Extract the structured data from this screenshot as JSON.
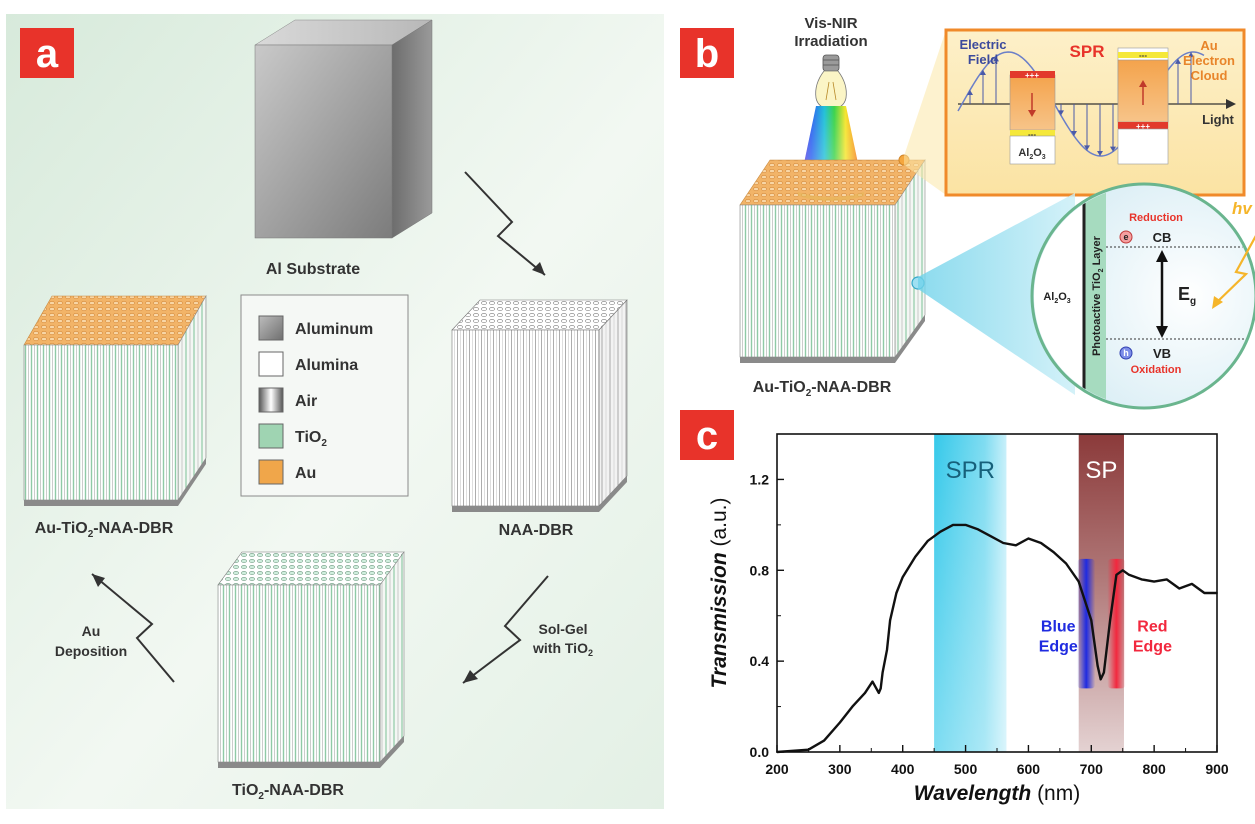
{
  "panel_a": {
    "badge": "a",
    "labels": {
      "al_substrate": "Al Substrate",
      "naa_dbr": "NAA-DBR",
      "tio2_naa_dbr": {
        "pre": "TiO",
        "sub": "2",
        "post": "-NAA-DBR"
      },
      "au_tio2_naa_dbr": {
        "pre": "Au-TiO",
        "sub": "2",
        "post": "-NAA-DBR"
      }
    },
    "steps": {
      "solgel": {
        "line1": "Sol-Gel",
        "line2_pre": "with TiO",
        "line2_sub": "2"
      },
      "au_dep": {
        "line1": "Au",
        "line2": "Deposition"
      }
    },
    "legend": [
      {
        "label": "Aluminum",
        "sub": "",
        "swatch": "aluminum"
      },
      {
        "label": "Alumina",
        "sub": "",
        "swatch": "alumina"
      },
      {
        "label": "Air",
        "sub": "",
        "swatch": "air"
      },
      {
        "label": "TiO",
        "sub": "2",
        "swatch": "tio2"
      },
      {
        "label": "Au",
        "sub": "",
        "swatch": "au"
      }
    ],
    "colors": {
      "background": "#e2efe4",
      "badge": "#e8332a",
      "tio2": "#9fd4b2",
      "au": "#f0a64a",
      "aluminum": "#8a8a8a"
    }
  },
  "panel_b": {
    "badge": "b",
    "lamp": {
      "line1": "Vis-NIR",
      "line2": "Irradiation"
    },
    "sample": {
      "pre": "Au-TiO",
      "sub": "2",
      "post": "-NAA-DBR"
    },
    "spr": {
      "title": "SPR",
      "electric_field": {
        "line1": "Electric",
        "line2": "Field"
      },
      "cloud": {
        "line1": "Au",
        "line2": "Electron",
        "line3": "Cloud"
      },
      "light": "Light",
      "plus": "+++",
      "minus": "---",
      "al2o3": {
        "pre": "Al",
        "s1": "2",
        "mid": "O",
        "s2": "3"
      }
    },
    "band": {
      "reduction": "Reduction",
      "cb": "CB",
      "vb": "VB",
      "oxidation": "Oxidation",
      "eg": {
        "main": "E",
        "sub": "g"
      },
      "electron": "e",
      "hole": "h",
      "hv": "hv",
      "layer": {
        "pre": "Photoactive TiO",
        "sub": "2",
        "post": " Layer"
      },
      "al2o3": {
        "pre": "Al",
        "s1": "2",
        "mid": "O",
        "s2": "3"
      }
    }
  },
  "panel_c": {
    "badge": "c",
    "chart_data": {
      "type": "line",
      "xlabel": {
        "main": "Wavelength",
        "unit": " (nm)"
      },
      "ylabel": {
        "main": "Transmission",
        "unit": " (a.u.)"
      },
      "xlim": [
        200,
        900
      ],
      "ylim": [
        0,
        1.4
      ],
      "x_ticks": [
        200,
        300,
        400,
        500,
        600,
        700,
        800,
        900
      ],
      "y_ticks": [
        0.0,
        0.4,
        0.8,
        1.2
      ],
      "y_tick_labels": [
        "0.0",
        "0.4",
        "0.8",
        "1.2"
      ],
      "bands": [
        {
          "label": "SPR",
          "from": 450,
          "to": 565,
          "color": "#3fd0ec"
        },
        {
          "label": "SP",
          "from": 680,
          "to": 752,
          "color": "#8b3a3a"
        }
      ],
      "edges": [
        {
          "label": {
            "line1": "Blue",
            "line2": "Edge"
          },
          "x": 692,
          "color": "#1f2be0"
        },
        {
          "label": {
            "line1": "Red",
            "line2": "Edge"
          },
          "x": 740,
          "color": "#f2283e"
        }
      ],
      "series": [
        {
          "x": [
            200,
            250,
            275,
            300,
            320,
            340,
            352,
            362,
            365,
            368,
            375,
            380,
            390,
            400,
            420,
            440,
            460,
            480,
            500,
            520,
            540,
            560,
            580,
            600,
            620,
            640,
            660,
            680,
            700,
            710,
            715,
            720,
            730,
            740,
            750,
            760,
            780,
            800,
            820,
            840,
            860,
            880,
            900
          ],
          "y": [
            0.0,
            0.01,
            0.05,
            0.13,
            0.2,
            0.26,
            0.31,
            0.26,
            0.28,
            0.35,
            0.45,
            0.58,
            0.7,
            0.77,
            0.86,
            0.93,
            0.97,
            1.0,
            1.0,
            0.98,
            0.95,
            0.92,
            0.91,
            0.94,
            0.92,
            0.88,
            0.83,
            0.75,
            0.58,
            0.38,
            0.32,
            0.35,
            0.58,
            0.78,
            0.8,
            0.78,
            0.76,
            0.75,
            0.76,
            0.72,
            0.74,
            0.7,
            0.7
          ]
        }
      ]
    }
  }
}
